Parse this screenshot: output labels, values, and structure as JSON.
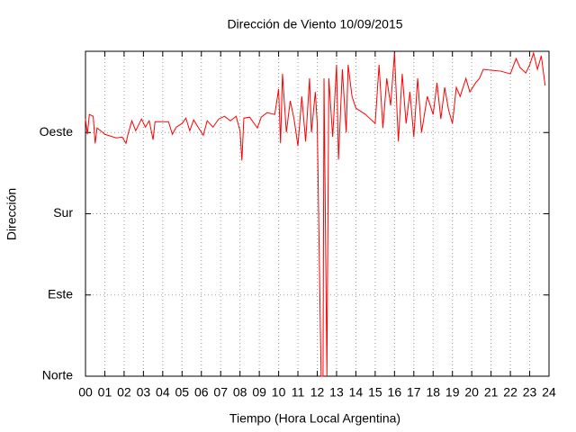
{
  "chart_data": {
    "type": "line",
    "title": "Dirección de Viento 10/09/2015",
    "x_label": "Tiempo (Hora Local Argentina)",
    "y_label": "Dirección",
    "grid": true,
    "xlim": [
      0,
      24
    ],
    "xticks": [
      {
        "value": 0,
        "label": "00"
      },
      {
        "value": 1,
        "label": "01"
      },
      {
        "value": 2,
        "label": "02"
      },
      {
        "value": 3,
        "label": "03"
      },
      {
        "value": 4,
        "label": "04"
      },
      {
        "value": 5,
        "label": "05"
      },
      {
        "value": 6,
        "label": "06"
      },
      {
        "value": 7,
        "label": "07"
      },
      {
        "value": 8,
        "label": "08"
      },
      {
        "value": 9,
        "label": "09"
      },
      10,
      11,
      12,
      13,
      14,
      15,
      16,
      17,
      18,
      19,
      20,
      21,
      22,
      23,
      24
    ],
    "ylim": [
      0,
      360
    ],
    "yticks": [
      {
        "value": 0,
        "label": "Norte"
      },
      {
        "value": 90,
        "label": "Este"
      },
      {
        "value": 180,
        "label": "Sur"
      },
      {
        "value": 270,
        "label": "Oeste"
      }
    ],
    "color": "#ff0000",
    "x": [
      0,
      0.1,
      0.2,
      0.4,
      0.5,
      0.6,
      0.9,
      1.0,
      1.3,
      1.6,
      1.9,
      2.1,
      2.2,
      2.4,
      2.6,
      2.9,
      3.1,
      3.3,
      3.5,
      3.6,
      4.0,
      4.3,
      4.5,
      4.7,
      5.0,
      5.2,
      5.4,
      5.6,
      5.8,
      6.1,
      6.3,
      6.6,
      6.9,
      7.2,
      7.5,
      7.8,
      8.0,
      8.1,
      8.2,
      8.5,
      8.9,
      9.1,
      9.4,
      9.8,
      10.0,
      10.1,
      10.2,
      10.4,
      10.6,
      10.8,
      11.0,
      11.2,
      11.4,
      11.6,
      11.7,
      11.9,
      12.0,
      12.2,
      12.3,
      12.35,
      12.5,
      12.6,
      12.8,
      13.0,
      13.1,
      13.3,
      13.5,
      13.6,
      13.8,
      14.0,
      14.5,
      15.0,
      15.2,
      15.4,
      15.6,
      15.8,
      16.0,
      16.2,
      16.4,
      16.6,
      16.8,
      17.0,
      17.2,
      17.4,
      17.7,
      18.0,
      18.2,
      18.4,
      18.6,
      18.8,
      19.0,
      19.2,
      19.4,
      19.7,
      19.9,
      20.2,
      20.4,
      20.6,
      21.0,
      21.5,
      22.0,
      22.3,
      22.5,
      22.8,
      23.0,
      23.2,
      23.4,
      23.6,
      23.8
    ],
    "values": [
      285,
      268,
      290,
      288,
      258,
      275,
      270,
      268,
      266,
      264,
      265,
      258,
      268,
      283,
      272,
      285,
      276,
      283,
      262,
      282,
      282,
      282,
      268,
      276,
      280,
      286,
      272,
      284,
      277,
      267,
      283,
      276,
      285,
      288,
      283,
      288,
      272,
      239,
      286,
      287,
      275,
      287,
      292,
      290,
      318,
      258,
      335,
      270,
      305,
      285,
      255,
      310,
      260,
      330,
      270,
      315,
      280,
      0,
      0,
      330,
      0,
      330,
      265,
      345,
      240,
      340,
      270,
      345,
      310,
      297,
      290,
      280,
      345,
      275,
      330,
      300,
      358,
      260,
      335,
      280,
      315,
      265,
      330,
      270,
      310,
      290,
      325,
      285,
      320,
      295,
      280,
      320,
      310,
      330,
      315,
      325,
      330,
      340,
      339,
      338,
      335,
      352,
      342,
      336,
      345,
      358,
      340,
      355,
      322
    ]
  }
}
